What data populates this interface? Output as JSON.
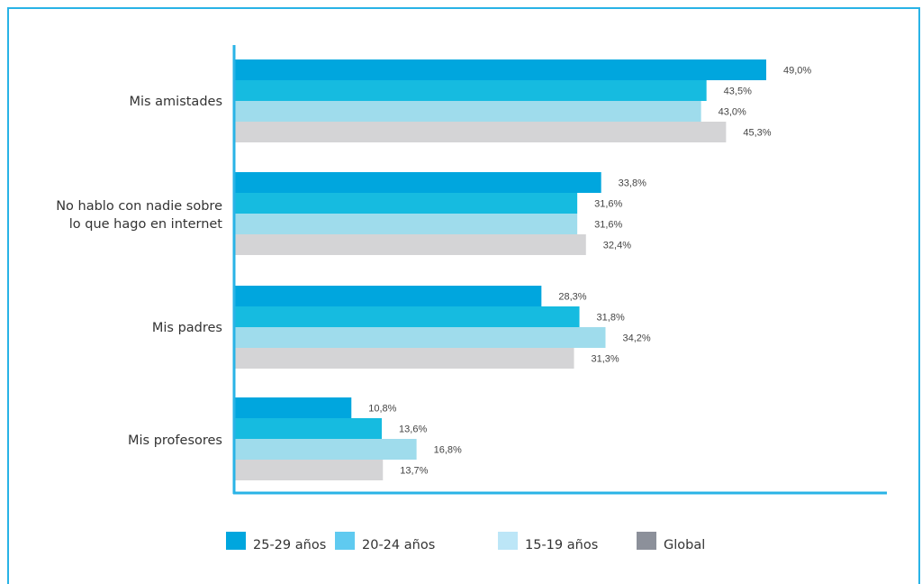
{
  "chart_data": {
    "type": "bar",
    "orientation": "horizontal",
    "title": "",
    "xlabel": "",
    "ylabel": "",
    "xlim": [
      0,
      60
    ],
    "grid": false,
    "legend_position": "bottom",
    "categories": [
      [
        "Mis amistades"
      ],
      [
        "No hablo con nadie sobre",
        "lo que hago en internet"
      ],
      [
        "Mis padres"
      ],
      [
        "Mis profesores"
      ]
    ],
    "series": [
      {
        "name": "25-29 años",
        "color": "#00a6de",
        "values": [
          49.0,
          33.8,
          28.3,
          10.8
        ],
        "labels": [
          "49,0%",
          "33,8%",
          "28,3%",
          "10,8%"
        ]
      },
      {
        "name": "20-24 años",
        "color": "#16bbe0",
        "values": [
          43.5,
          31.6,
          31.8,
          13.6
        ],
        "labels": [
          "43,5%",
          "31,6%",
          "31,8%",
          "13,6%"
        ]
      },
      {
        "name": "15-19 años",
        "color": "#9fdcec",
        "values": [
          43.0,
          31.6,
          34.2,
          16.8
        ],
        "labels": [
          "43,0%",
          "31,6%",
          "34,2%",
          "16,8%"
        ]
      },
      {
        "name": "Global",
        "color": "#d4d4d6",
        "values": [
          45.3,
          32.4,
          31.3,
          13.7
        ],
        "labels": [
          "45,3%",
          "32,4%",
          "31,3%",
          "13,7%"
        ]
      }
    ],
    "legend_colors": [
      "#00a6de",
      "#5fcaf0",
      "#bce6f7",
      "#8c909a"
    ],
    "axis_color": "#29b3e6"
  }
}
